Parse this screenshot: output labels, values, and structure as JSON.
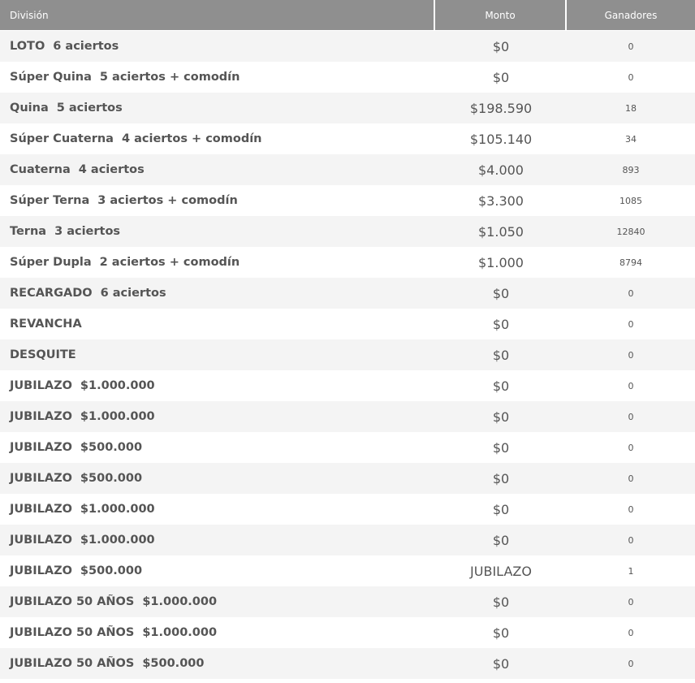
{
  "header": {
    "division": "División",
    "monto": "Monto",
    "ganadores": "Ganadores"
  },
  "rows": [
    {
      "name": "LOTO",
      "detail": "6 aciertos",
      "monto": "$0",
      "ganadores": "0"
    },
    {
      "name": "Súper Quina",
      "detail": "5 aciertos + comodín",
      "monto": "$0",
      "ganadores": "0"
    },
    {
      "name": "Quina",
      "detail": "5 aciertos",
      "monto": "$198.590",
      "ganadores": "18"
    },
    {
      "name": "Súper Cuaterna",
      "detail": "4 aciertos + comodín",
      "monto": "$105.140",
      "ganadores": "34"
    },
    {
      "name": "Cuaterna",
      "detail": "4 aciertos",
      "monto": "$4.000",
      "ganadores": "893"
    },
    {
      "name": "Súper Terna",
      "detail": "3 aciertos + comodín",
      "monto": "$3.300",
      "ganadores": "1085"
    },
    {
      "name": "Terna",
      "detail": "3 aciertos",
      "monto": "$1.050",
      "ganadores": "12840"
    },
    {
      "name": "Súper Dupla",
      "detail": "2 aciertos + comodín",
      "monto": "$1.000",
      "ganadores": "8794"
    },
    {
      "name": "RECARGADO",
      "detail": "6 aciertos",
      "monto": "$0",
      "ganadores": "0"
    },
    {
      "name": "REVANCHA",
      "detail": "",
      "monto": "$0",
      "ganadores": "0"
    },
    {
      "name": "DESQUITE",
      "detail": "",
      "monto": "$0",
      "ganadores": "0"
    },
    {
      "name": "JUBILAZO",
      "detail": "$1.000.000",
      "monto": "$0",
      "ganadores": "0"
    },
    {
      "name": "JUBILAZO",
      "detail": "$1.000.000",
      "monto": "$0",
      "ganadores": "0"
    },
    {
      "name": "JUBILAZO",
      "detail": "$500.000",
      "monto": "$0",
      "ganadores": "0"
    },
    {
      "name": "JUBILAZO",
      "detail": "$500.000",
      "monto": "$0",
      "ganadores": "0"
    },
    {
      "name": "JUBILAZO",
      "detail": "$1.000.000",
      "monto": "$0",
      "ganadores": "0"
    },
    {
      "name": "JUBILAZO",
      "detail": "$1.000.000",
      "monto": "$0",
      "ganadores": "0"
    },
    {
      "name": "JUBILAZO",
      "detail": "$500.000",
      "monto": "JUBILAZO",
      "ganadores": "1"
    },
    {
      "name": "JUBILAZO 50 AÑOS",
      "detail": "$1.000.000",
      "monto": "$0",
      "ganadores": "0"
    },
    {
      "name": "JUBILAZO 50 AÑOS",
      "detail": "$1.000.000",
      "monto": "$0",
      "ganadores": "0"
    },
    {
      "name": "JUBILAZO 50 AÑOS",
      "detail": "$500.000",
      "monto": "$0",
      "ganadores": "0"
    }
  ],
  "colors": {
    "header_bg": "#8f8f8f",
    "row_alt_bg": "#f4f4f4",
    "text": "#555555"
  }
}
